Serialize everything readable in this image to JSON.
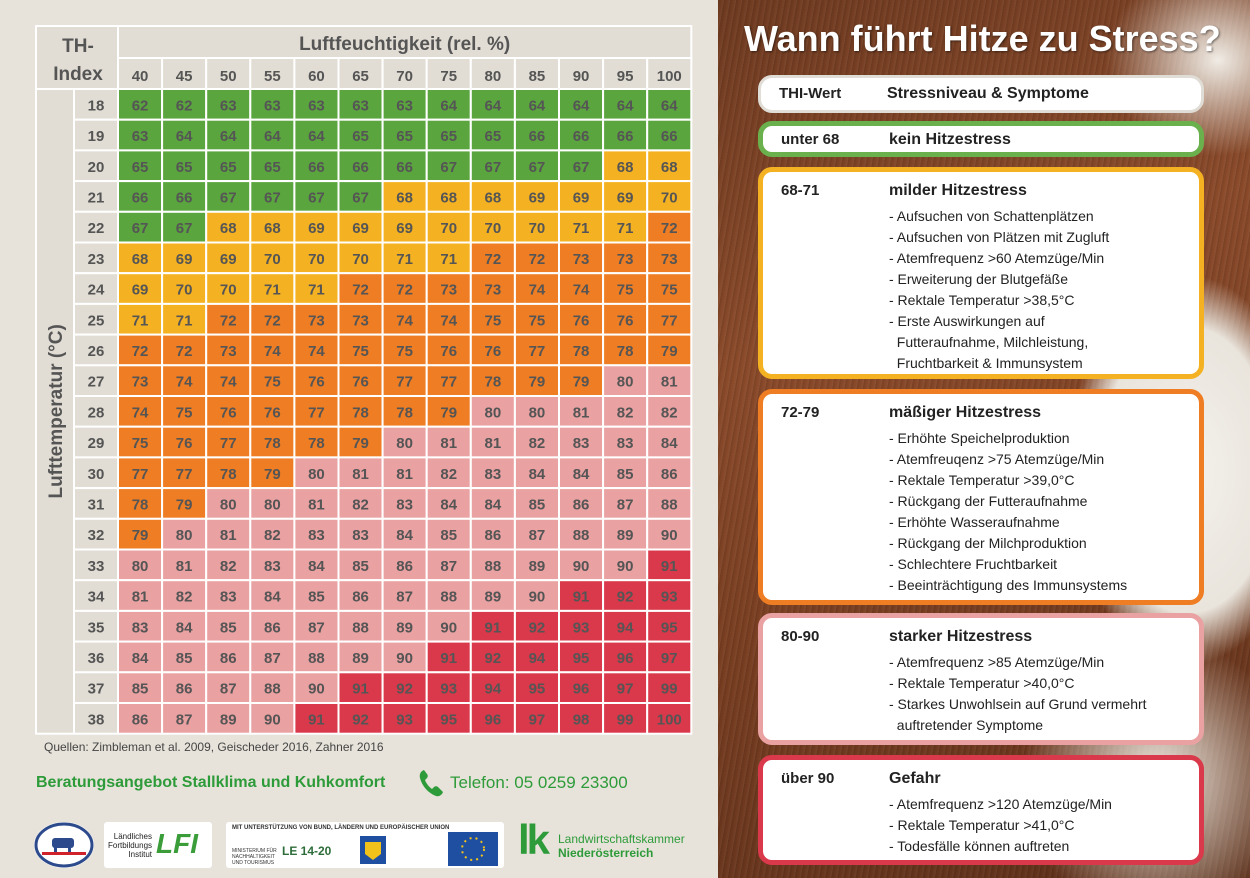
{
  "chart_data": {
    "type": "heatmap",
    "corner_label": [
      "TH-",
      "Index"
    ],
    "x_title": "Luftfeuchtigkeit (rel. %)",
    "y_title": "Lufttemperatur (°C)",
    "humidity": [
      "40",
      "45",
      "50",
      "55",
      "60",
      "65",
      "70",
      "75",
      "80",
      "85",
      "90",
      "95",
      "100"
    ],
    "temperature": [
      "18",
      "19",
      "20",
      "21",
      "22",
      "23",
      "24",
      "25",
      "26",
      "27",
      "28",
      "29",
      "30",
      "31",
      "32",
      "33",
      "34",
      "35",
      "36",
      "37",
      "38"
    ],
    "values": [
      [
        62,
        62,
        63,
        63,
        63,
        63,
        63,
        64,
        64,
        64,
        64,
        64,
        64
      ],
      [
        63,
        64,
        64,
        64,
        64,
        65,
        65,
        65,
        65,
        66,
        66,
        66,
        66
      ],
      [
        65,
        65,
        65,
        65,
        66,
        66,
        66,
        67,
        67,
        67,
        67,
        68,
        68
      ],
      [
        66,
        66,
        67,
        67,
        67,
        67,
        68,
        68,
        68,
        69,
        69,
        69,
        70
      ],
      [
        67,
        67,
        68,
        68,
        69,
        69,
        69,
        70,
        70,
        70,
        71,
        71,
        72
      ],
      [
        68,
        69,
        69,
        70,
        70,
        70,
        71,
        71,
        72,
        72,
        73,
        73,
        73
      ],
      [
        69,
        70,
        70,
        71,
        71,
        72,
        72,
        73,
        73,
        74,
        74,
        75,
        75
      ],
      [
        71,
        71,
        72,
        72,
        73,
        73,
        74,
        74,
        75,
        75,
        76,
        76,
        77
      ],
      [
        72,
        72,
        73,
        74,
        74,
        75,
        75,
        76,
        76,
        77,
        78,
        78,
        79
      ],
      [
        73,
        74,
        74,
        75,
        76,
        76,
        77,
        77,
        78,
        79,
        79,
        80,
        81
      ],
      [
        74,
        75,
        76,
        76,
        77,
        78,
        78,
        79,
        80,
        80,
        81,
        82,
        82
      ],
      [
        75,
        76,
        77,
        78,
        78,
        79,
        80,
        81,
        81,
        82,
        83,
        83,
        84
      ],
      [
        77,
        77,
        78,
        79,
        80,
        81,
        81,
        82,
        83,
        84,
        84,
        85,
        86
      ],
      [
        78,
        79,
        80,
        80,
        81,
        82,
        83,
        84,
        84,
        85,
        86,
        87,
        88
      ],
      [
        79,
        80,
        81,
        82,
        83,
        83,
        84,
        85,
        86,
        87,
        88,
        89,
        90
      ],
      [
        80,
        81,
        82,
        83,
        84,
        85,
        86,
        87,
        88,
        89,
        90,
        90,
        91
      ],
      [
        81,
        82,
        83,
        84,
        85,
        86,
        87,
        88,
        89,
        90,
        91,
        92,
        93
      ],
      [
        83,
        84,
        85,
        86,
        87,
        88,
        89,
        90,
        91,
        92,
        93,
        94,
        95
      ],
      [
        84,
        85,
        86,
        87,
        88,
        89,
        90,
        91,
        92,
        94,
        95,
        96,
        97
      ],
      [
        85,
        86,
        87,
        88,
        90,
        91,
        92,
        93,
        94,
        95,
        96,
        97,
        99
      ],
      [
        86,
        87,
        89,
        90,
        91,
        92,
        93,
        95,
        96,
        97,
        98,
        99,
        100
      ]
    ],
    "color_scale": {
      "green": "#5aa53e",
      "yellow": "#f4b222",
      "orange": "#ee7d23",
      "pink": "#eaa1a2",
      "red": "#d9394a"
    }
  },
  "footer": {
    "sources": "Quellen: Zimbleman et al. 2009, Geischeder 2016, Zahner 2016",
    "consult": "Beratungsangebot Stallklima und Kuhkomfort",
    "phone": "Telefon: 05 0259 23300"
  },
  "logos": {
    "lfi_text": [
      "Ländliches",
      "Fortbildungs",
      "Institut"
    ],
    "lfi_mark": "LFI",
    "eu_support": "MIT UNTERSTÜTZUNG VON BUND, LÄNDERN UND EUROPÄISCHER UNION",
    "ministry": "MINISTERIUM FÜR NACHHALTIGKEIT UND TOURISMUS",
    "le": "LE 14-20",
    "lk_mark": "lk",
    "lk_name": [
      "Landwirtschaftskammer",
      "Niederösterreich"
    ]
  },
  "panel": {
    "headline": "Wann führt Hitze zu Stress?",
    "header": {
      "key": "THI-Wert",
      "name": "Stressniveau & Symptome"
    },
    "levels": [
      {
        "key": "unter 68",
        "name": "kein Hitzestress",
        "color": "#6ab04c",
        "items": []
      },
      {
        "key": "68-71",
        "name": "milder Hitzestress",
        "color": "#f4b222",
        "items": [
          "- Aufsuchen von Schattenplätzen",
          "- Aufsuchen von Plätzen mit Zugluft",
          "- Atemfrequenz >60 Atemzüge/Min",
          "- Erweiterung der Blutgefäße",
          "- Rektale Temperatur >38,5°C",
          "- Erste Auswirkungen auf",
          "  Futteraufnahme, Milchleistung,",
          "  Fruchtbarkeit & Immunsystem"
        ]
      },
      {
        "key": "72-79",
        "name": "mäßiger Hitzestress",
        "color": "#ee7d23",
        "items": [
          "- Erhöhte Speichelproduktion",
          "- Atemfreuqenz >75 Atemzüge/Min",
          "- Rektale Temperatur >39,0°C",
          "- Rückgang der Futteraufnahme",
          "- Erhöhte Wasseraufnahme",
          "- Rückgang der Milchproduktion",
          "- Schlechtere Fruchtbarkeit",
          "- Beeinträchtigung des Immunsystems"
        ]
      },
      {
        "key": "80-90",
        "name": "starker Hitzestress",
        "color": "#eaa1a2",
        "items": [
          "- Atemfrequenz >85 Atemzüge/Min",
          "- Rektale Temperatur >40,0°C",
          "- Starkes Unwohlsein auf Grund vermehrt",
          "  auftretender Symptome"
        ]
      },
      {
        "key": "über 90",
        "name": "Gefahr",
        "color": "#d9394a",
        "items": [
          "- Atemfrequenz >120 Atemzüge/Min",
          "- Rektale Temperatur >41,0°C",
          "- Todesfälle können auftreten"
        ]
      }
    ]
  }
}
